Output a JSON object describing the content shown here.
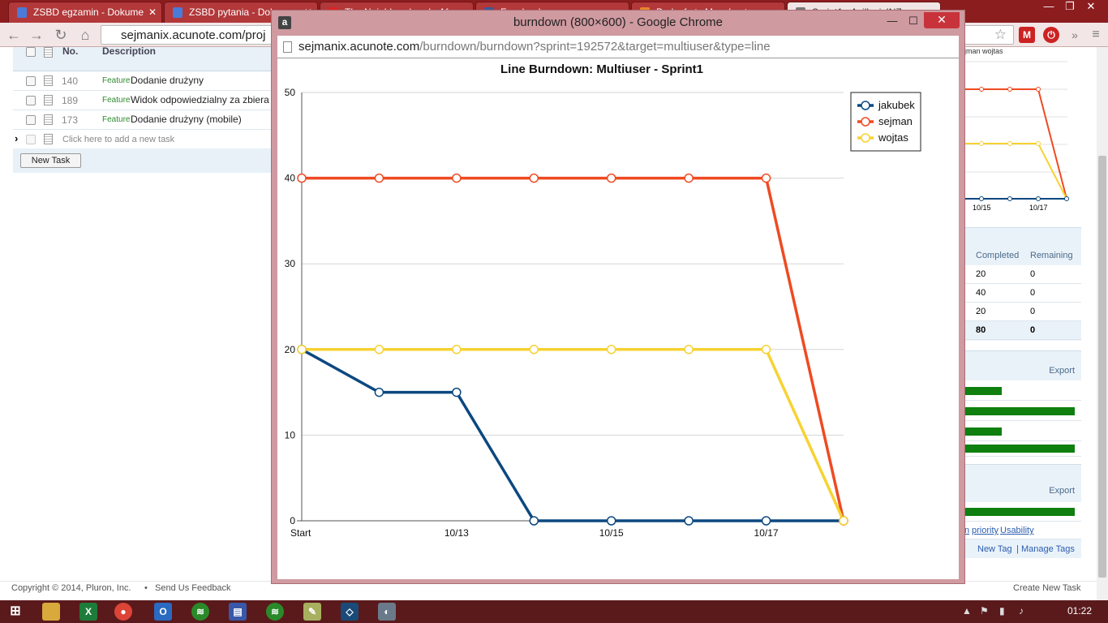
{
  "browser": {
    "tabs": [
      {
        "label": "ZSBD egzamin - Dokume",
        "icon_color": "#4a7bd8"
      },
      {
        "label": "ZSBD pytania - Dokumen",
        "icon_color": "#4a7bd8"
      },
      {
        "label": "The Neighbourhood - Af",
        "icon_color": "#d22"
      },
      {
        "label": "Facebook",
        "icon_color": "#3b5998"
      },
      {
        "label": "Podcafe.tv Manchest",
        "icon_color": "#e8862a"
      },
      {
        "label": "Sprint1 - AcillesisINZ",
        "icon_color": "#777"
      }
    ],
    "url": "sejmanix.acunote.com/proj"
  },
  "tasks": {
    "header": {
      "no": "No.",
      "description": "Description"
    },
    "rows": [
      {
        "no": "140",
        "type": "Feature",
        "text": "Dodanie drużyny"
      },
      {
        "no": "189",
        "type": "Feature",
        "text": "Widok odpowiedzialny za zbiera"
      },
      {
        "no": "173",
        "type": "Feature",
        "text": "Dodanie drużyny (mobile)"
      }
    ],
    "add_placeholder": "Click here to add a new task",
    "new_task_button": "New Task"
  },
  "right_panel": {
    "mini_legend": "jman  wojtas",
    "mini_ticks": [
      "10/15",
      "10/17"
    ],
    "table_headers": {
      "completed": "Completed",
      "remaining": "Remaining"
    },
    "table_rows": [
      {
        "completed": "20",
        "remaining": "0"
      },
      {
        "completed": "40",
        "remaining": "0"
      },
      {
        "completed": "20",
        "remaining": "0"
      }
    ],
    "table_total": {
      "completed": "80",
      "remaining": "0"
    },
    "export_1": "Export",
    "export_2": "Export",
    "links": {
      "n": "n",
      "priority": "priority",
      "usability": "Usability"
    },
    "new_tag": "New Tag",
    "separator": "|",
    "manage_tags": "Manage Tags"
  },
  "footer": {
    "copyright": "Copyright © 2014, Pluron, Inc.",
    "bullet": "•",
    "feedback": "Send Us Feedback",
    "create_task": "Create New Task"
  },
  "popup": {
    "window_title": "burndown (800×600) - Google Chrome",
    "url_host": "sejmanix.acunote.com",
    "url_path": "/burndown/burndown?sprint=192572&target=multiuser&type=line"
  },
  "taskbar": {
    "clock": "01:22"
  },
  "chart_data": {
    "type": "line",
    "title": "Line Burndown: Multiuser - Sprint1",
    "x": [
      "Start",
      "10/12",
      "10/13",
      "10/14",
      "10/15",
      "10/16",
      "10/17",
      "10/18"
    ],
    "x_tick_labels": [
      "Start",
      "",
      "10/13",
      "",
      "10/15",
      "",
      "10/17",
      ""
    ],
    "ylim": [
      0,
      50
    ],
    "y_ticks": [
      0,
      10,
      20,
      30,
      40,
      50
    ],
    "grid": true,
    "legend_position": "top-right",
    "series": [
      {
        "name": "jakubek",
        "color": "#0b4880",
        "values": [
          20,
          15,
          15,
          0,
          0,
          0,
          0,
          0
        ]
      },
      {
        "name": "sejman",
        "color": "#ef4a22",
        "values": [
          40,
          40,
          40,
          40,
          40,
          40,
          40,
          0
        ]
      },
      {
        "name": "wojtas",
        "color": "#f7d232",
        "values": [
          20,
          20,
          20,
          20,
          20,
          20,
          20,
          0
        ]
      }
    ]
  }
}
